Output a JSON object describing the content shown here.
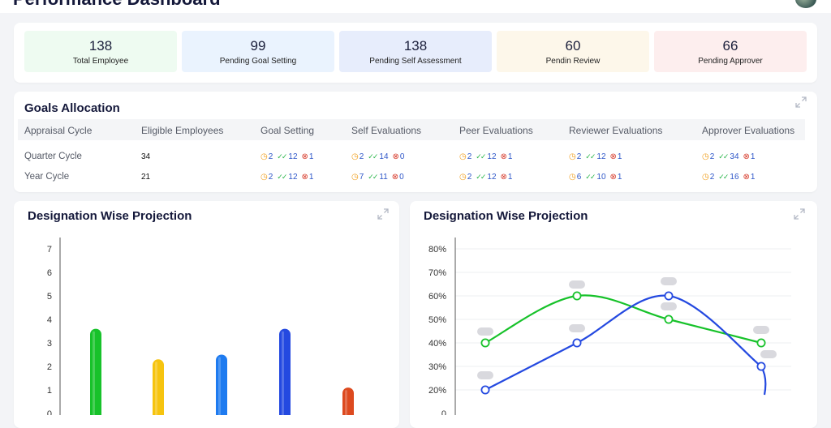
{
  "header": {
    "title": "Performance Dashboard"
  },
  "stats": [
    {
      "value": "138",
      "label": "Total Employee",
      "bg": "#eefbf1"
    },
    {
      "value": "99",
      "label": "Pending Goal Setting",
      "bg": "#eaf3fe"
    },
    {
      "value": "138",
      "label": "Pending Self Assessment",
      "bg": "#e7edfc"
    },
    {
      "value": "60",
      "label": "Pendin Review",
      "bg": "#fdf7ea"
    },
    {
      "value": "66",
      "label": "Pending Approver",
      "bg": "#fdeeee"
    }
  ],
  "goals": {
    "title": "Goals Allocation",
    "columns": [
      "Appraisal Cycle",
      "Eligible Employees",
      "Goal Setting",
      "Self Evaluations",
      "Peer Evaluations",
      "Reviewer Evaluations",
      "Approver Evaluations"
    ],
    "rows": [
      {
        "cycle": "Quarter Cycle",
        "eligible": "34",
        "metrics": [
          [
            "2",
            "12",
            "1"
          ],
          [
            "2",
            "14",
            "0"
          ],
          [
            "2",
            "12",
            "1"
          ],
          [
            "2",
            "12",
            "1"
          ],
          [
            "2",
            "34",
            "1"
          ]
        ]
      },
      {
        "cycle": "Year Cycle",
        "eligible": "21",
        "metrics": [
          [
            "2",
            "12",
            "1"
          ],
          [
            "7",
            "11",
            "0"
          ],
          [
            "2",
            "12",
            "1"
          ],
          [
            "6",
            "10",
            "1"
          ],
          [
            "2",
            "16",
            "1"
          ]
        ]
      }
    ]
  },
  "left_panel": {
    "title": "Designation Wise Projection"
  },
  "right_panel": {
    "title": "Designation Wise Projection"
  },
  "chart_data": [
    {
      "type": "bar",
      "title": "Designation Wise Projection",
      "y_ticks": [
        "7",
        "6",
        "5",
        "4",
        "3",
        "2",
        "1",
        "0"
      ],
      "ylim": [
        0,
        7
      ],
      "values": [
        3.6,
        2.3,
        2.5,
        3.6,
        1.1
      ],
      "colors": [
        "#17c22a",
        "#f6c40f",
        "#1e7bf0",
        "#2449e0",
        "#dd4a1f"
      ]
    },
    {
      "type": "line",
      "title": "Designation Wise Projection",
      "y_ticks": [
        "80%",
        "70%",
        "60%",
        "50%",
        "40%",
        "30%",
        "20%",
        "0"
      ],
      "ylim": [
        0,
        80
      ],
      "series": [
        {
          "name": "green",
          "color": "#17c22a",
          "values": [
            40,
            60,
            50,
            40
          ]
        },
        {
          "name": "blue",
          "color": "#2449e0",
          "values": [
            20,
            40,
            60,
            30
          ]
        }
      ]
    }
  ]
}
